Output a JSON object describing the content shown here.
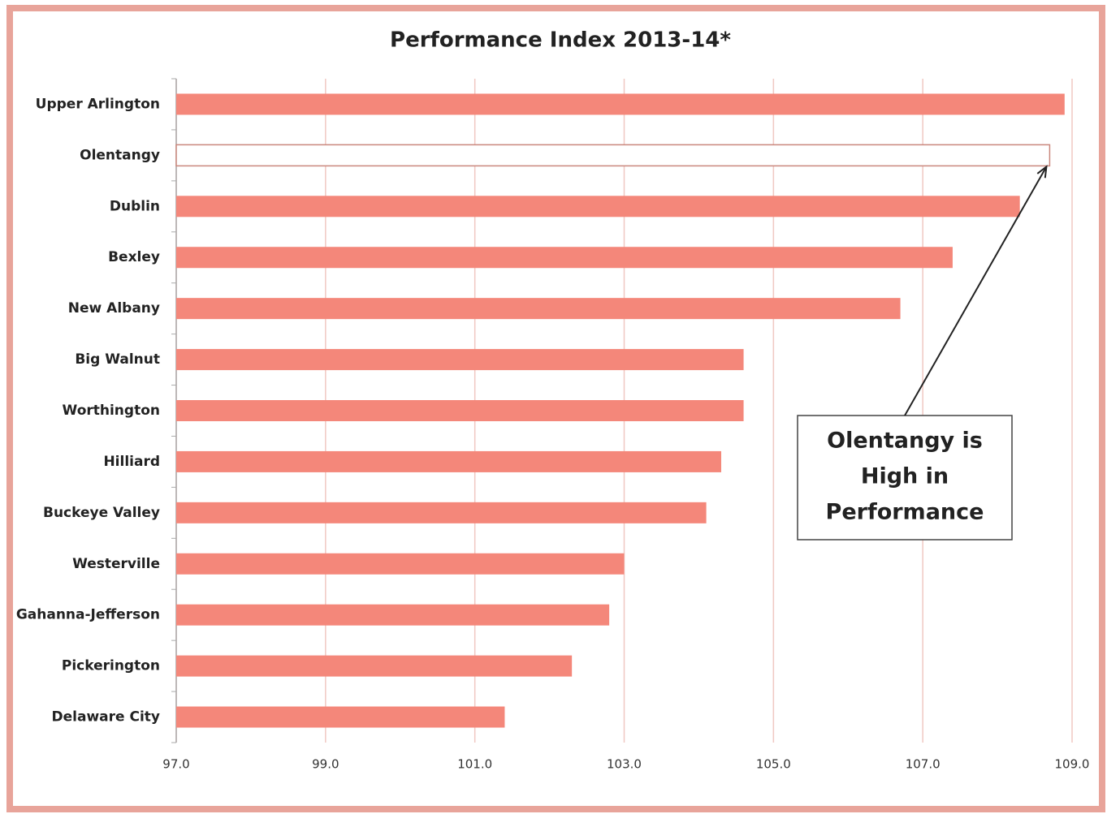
{
  "chart_data": {
    "type": "hbar",
    "title": "Performance Index 2013-14*",
    "categories": [
      "Upper Arlington",
      "Olentangy",
      "Dublin",
      "Bexley",
      "New Albany",
      "Big Walnut",
      "Worthington",
      "Hilliard",
      "Buckeye Valley",
      "Westerville",
      "Gahanna-Jefferson",
      "Pickerington",
      "Delaware City"
    ],
    "values": [
      108.9,
      108.7,
      108.3,
      107.4,
      106.7,
      104.6,
      104.6,
      104.3,
      104.1,
      103.0,
      102.8,
      102.3,
      101.4
    ],
    "colors": [
      "#f4877a",
      "#ffffff",
      "#f4877a",
      "#f4877a",
      "#f4877a",
      "#f4877a",
      "#f4877a",
      "#f4877a",
      "#f4877a",
      "#f4877a",
      "#f4877a",
      "#f4877a",
      "#f4877a"
    ],
    "xlim": [
      97,
      109
    ],
    "xticks": [
      {
        "value": 97,
        "label": "97.0"
      },
      {
        "value": 99,
        "label": "99.0"
      },
      {
        "value": 101,
        "label": "101.0"
      },
      {
        "value": 103,
        "label": "103.0"
      },
      {
        "value": 105,
        "label": "105.0"
      },
      {
        "value": 107,
        "label": "107.0"
      },
      {
        "value": 109,
        "label": "109.0"
      }
    ],
    "grid": true,
    "annotation": {
      "lines": [
        "Olentangy is",
        "High in",
        "Performance"
      ],
      "target": 1
    }
  }
}
